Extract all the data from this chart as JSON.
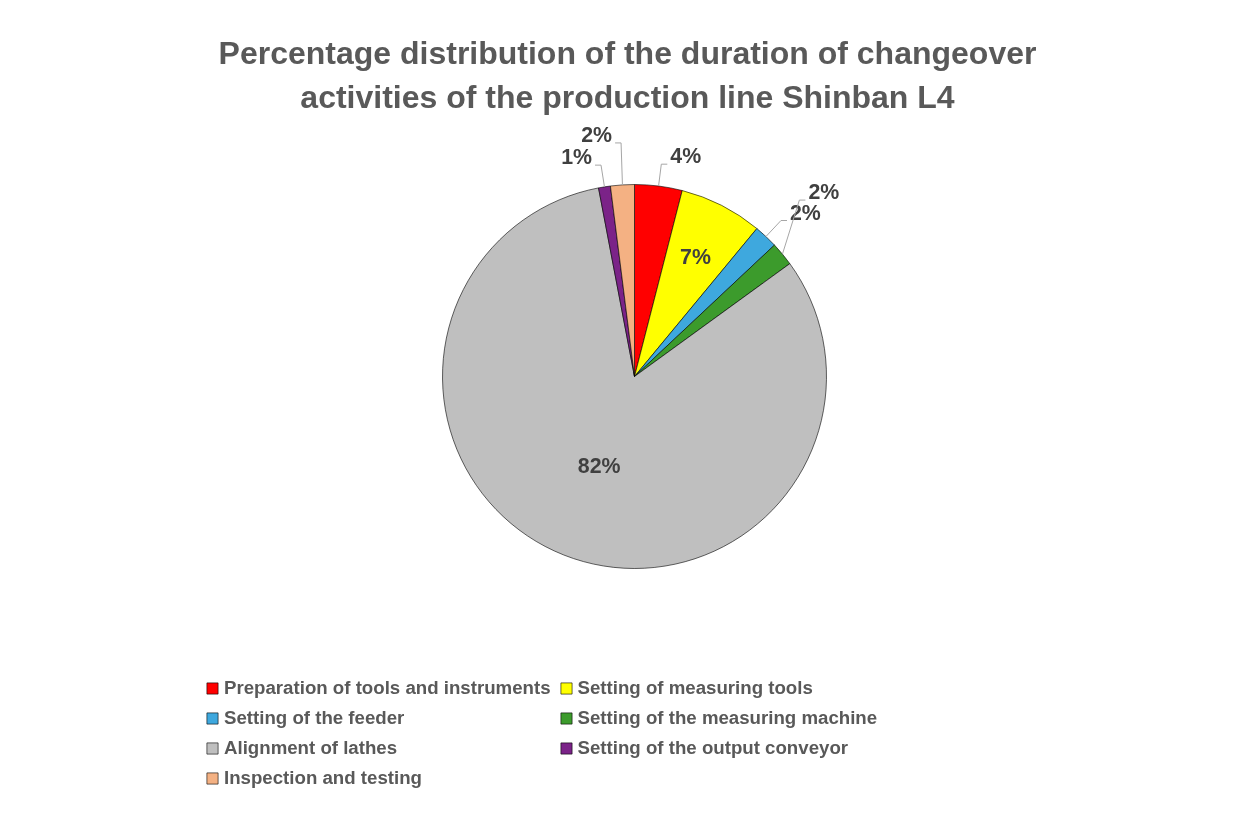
{
  "chart_data": {
    "type": "pie",
    "title": "Percentage distribution of the duration of changeover activities of the production line Shinban L4",
    "categories": [
      "Preparation of tools and instruments",
      "Setting of measuring tools",
      "Setting of the feeder",
      "Setting of the measuring machine",
      "Alignment of lathes",
      "Setting of the output conveyor",
      "Inspection and testing"
    ],
    "values": [
      4,
      7,
      2,
      2,
      82,
      1,
      2
    ],
    "colors": [
      "#ff0000",
      "#ffff00",
      "#3ea8de",
      "#3c9b2c",
      "#bfbfbf",
      "#7b2388",
      "#f4b183"
    ],
    "data_labels": true,
    "value_labels": [
      "4%",
      "7%",
      "2%",
      "2%",
      "82%",
      "1%",
      "2%"
    ],
    "legend": "bottom"
  }
}
